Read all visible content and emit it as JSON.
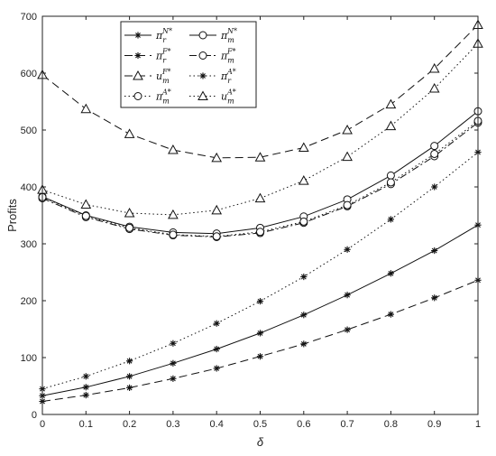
{
  "chart_data": {
    "type": "line",
    "xlabel": "δ",
    "ylabel": "Profits",
    "xlim": [
      0,
      1
    ],
    "ylim": [
      0,
      700
    ],
    "x": [
      0,
      0.1,
      0.2,
      0.3,
      0.4,
      0.5,
      0.6,
      0.7,
      0.8,
      0.9,
      1
    ],
    "xticks": [
      "0",
      "0.1",
      "0.2",
      "0.3",
      "0.4",
      "0.5",
      "0.6",
      "0.7",
      "0.8",
      "0.9",
      "1"
    ],
    "yticks": [
      "0",
      "100",
      "200",
      "300",
      "400",
      "500",
      "600",
      "700"
    ],
    "legend_position": "top-left",
    "series": [
      {
        "name": "π_r^{N*}",
        "base": "π",
        "sub": "r",
        "sup": "N*",
        "marker": "asterisk",
        "dash": "solid",
        "values": [
          33,
          48,
          67,
          90,
          115,
          143,
          175,
          210,
          248,
          288,
          333
        ]
      },
      {
        "name": "π_m^{N*}",
        "base": "π",
        "sub": "m",
        "sup": "N*",
        "marker": "circle",
        "dash": "solid",
        "values": [
          383,
          350,
          330,
          320,
          318,
          328,
          348,
          378,
          420,
          472,
          533
        ]
      },
      {
        "name": "π_r^{F*}",
        "base": "π",
        "sub": "r",
        "sup": "F*",
        "marker": "asterisk",
        "dash": "dashed",
        "values": [
          23,
          34,
          47,
          63,
          81,
          102,
          124,
          149,
          176,
          205,
          236
        ]
      },
      {
        "name": "π_m^{F*}",
        "base": "π",
        "sub": "m",
        "sup": "F*",
        "marker": "circle",
        "dash": "dashdot",
        "values": [
          380,
          347,
          326,
          315,
          312,
          319,
          337,
          366,
          405,
          454,
          513
        ]
      },
      {
        "name": "u_m^{F*}",
        "base": "u",
        "sub": "m",
        "sup": "F*",
        "marker": "triangle",
        "dash": "dashed",
        "values": [
          597,
          537,
          493,
          465,
          451,
          452,
          469,
          500,
          545,
          608,
          685
        ]
      },
      {
        "name": "π_r^{A*}",
        "base": "π",
        "sub": "r",
        "sup": "A*",
        "marker": "asterisk",
        "dash": "dotted",
        "values": [
          45,
          67,
          94,
          125,
          160,
          199,
          242,
          290,
          343,
          400,
          461
        ]
      },
      {
        "name": "π_m^{A*}",
        "base": "π",
        "sub": "m",
        "sup": "A*",
        "marker": "circle",
        "dash": "dotted",
        "values": [
          382,
          349,
          328,
          316,
          313,
          321,
          339,
          368,
          408,
          458,
          516
        ]
      },
      {
        "name": "u_m^{A*}",
        "base": "u",
        "sub": "m",
        "sup": "A*",
        "marker": "triangle",
        "dash": "dotted",
        "values": [
          395,
          369,
          354,
          351,
          359,
          380,
          411,
          453,
          507,
          573,
          652
        ]
      }
    ]
  }
}
